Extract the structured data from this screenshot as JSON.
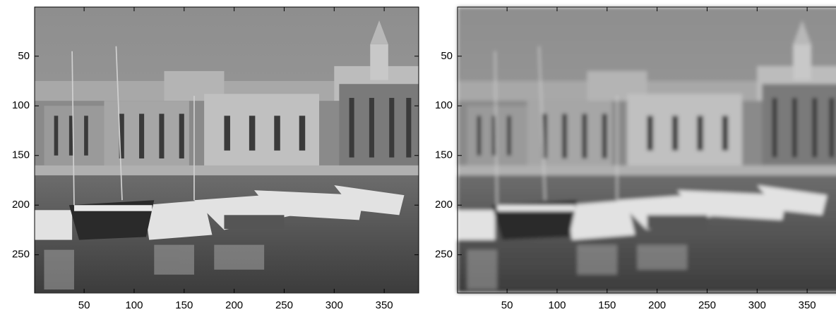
{
  "chart_data": [
    {
      "type": "image",
      "xlim": [
        0.5,
        384.5
      ],
      "ylim": [
        0.5,
        288.5
      ],
      "xticks": [
        50,
        100,
        150,
        200,
        250,
        300,
        350
      ],
      "yticks": [
        50,
        100,
        150,
        200,
        250
      ],
      "blur": false
    },
    {
      "type": "image",
      "xlim": [
        0.5,
        384.5
      ],
      "ylim": [
        0.5,
        288.5
      ],
      "xticks": [
        50,
        100,
        150,
        200,
        250,
        300,
        350
      ],
      "yticks": [
        50,
        100,
        150,
        200,
        250
      ],
      "blur": true
    }
  ]
}
